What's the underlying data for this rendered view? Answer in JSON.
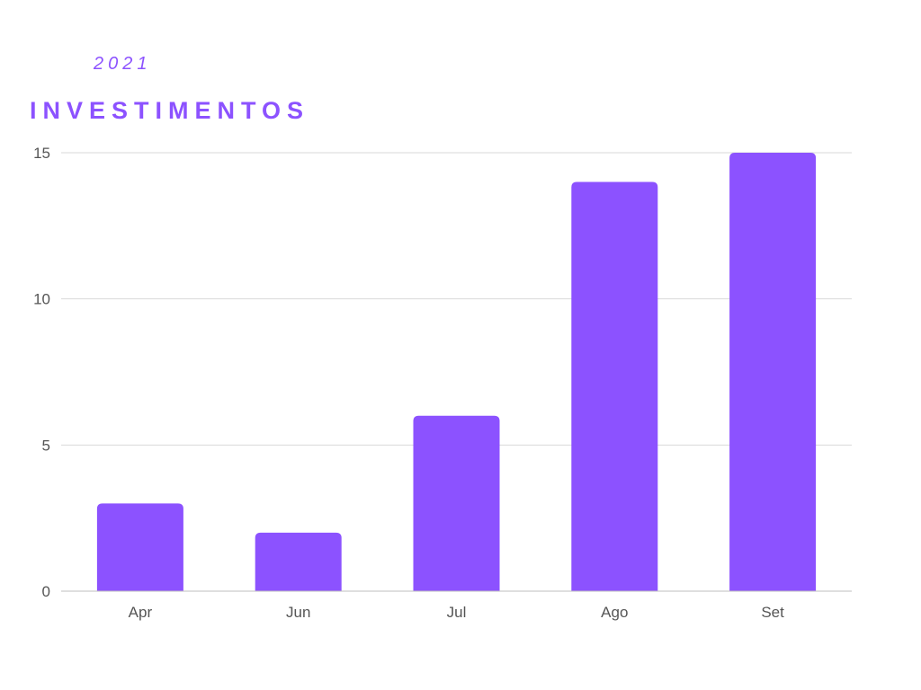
{
  "chart_data": {
    "type": "bar",
    "subtitle": "2021",
    "title": "INVESTIMENTOS",
    "xlabel": "",
    "ylabel": "",
    "categories": [
      "Apr",
      "Jun",
      "Jul",
      "Ago",
      "Set"
    ],
    "values": [
      3,
      2,
      6,
      14,
      15
    ],
    "ylim": [
      0,
      15
    ],
    "yticks": [
      0,
      5,
      10,
      15
    ],
    "grid": true,
    "legend": "none",
    "bar_color": "#8c52ff",
    "grid_color": "#d9d9d9",
    "tick_color": "#555555"
  }
}
